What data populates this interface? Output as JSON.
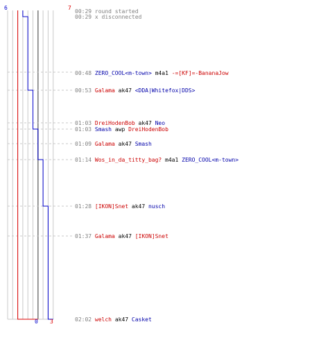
{
  "colors": {
    "team_blue": "#0000cc",
    "team_red": "#dd0000",
    "grid": "#c8c8c8",
    "timeline": "#7f7f7f"
  },
  "scores": {
    "blue_start": "6",
    "red_start": "7",
    "blue_end": "0",
    "red_end": "3"
  },
  "chart_data": {
    "type": "line",
    "series": [
      {
        "color": "blue",
        "values": [
          6,
          5,
          5,
          4,
          4,
          3,
          3,
          2,
          1,
          1,
          0
        ]
      },
      {
        "color": "red",
        "values": [
          7,
          7,
          7,
          7,
          7,
          7,
          7,
          7,
          7,
          7,
          3
        ]
      }
    ],
    "ylim": [
      0,
      7
    ]
  },
  "events": [
    {
      "time": "00:29",
      "parts": [
        {
          "t": "round started",
          "c": "gray"
        }
      ]
    },
    {
      "time": "00:29",
      "parts": [
        {
          "t": "x disconnected",
          "c": "gray"
        }
      ]
    },
    {
      "time": "00:48",
      "parts": [
        {
          "t": "ZERO_COOL<m-town>",
          "c": "blue"
        },
        {
          "t": " m4a1 ",
          "c": "blk"
        },
        {
          "t": "-=[KF]=-BananaJow",
          "c": "red"
        }
      ]
    },
    {
      "time": "00:53",
      "parts": [
        {
          "t": "Galama",
          "c": "red"
        },
        {
          "t": " ak47 ",
          "c": "blk"
        },
        {
          "t": "<DDA|Whitefox|DDS>",
          "c": "blue"
        }
      ]
    },
    {
      "time": "01:03",
      "parts": [
        {
          "t": "DreiHodenBob",
          "c": "red"
        },
        {
          "t": " ak47 ",
          "c": "blk"
        },
        {
          "t": "Neo",
          "c": "blue"
        }
      ]
    },
    {
      "time": "01:03",
      "parts": [
        {
          "t": "Smash",
          "c": "blue"
        },
        {
          "t": " awp ",
          "c": "blk"
        },
        {
          "t": "DreiHodenBob",
          "c": "red"
        }
      ]
    },
    {
      "time": "01:09",
      "parts": [
        {
          "t": "Galama",
          "c": "red"
        },
        {
          "t": " ak47 ",
          "c": "blk"
        },
        {
          "t": "Smash",
          "c": "blue"
        }
      ]
    },
    {
      "time": "01:14",
      "parts": [
        {
          "t": "Wos_in_da_titty_bag?",
          "c": "red"
        },
        {
          "t": " m4a1 ",
          "c": "blk"
        },
        {
          "t": "ZERO_COOL<m-town>",
          "c": "blue"
        }
      ]
    },
    {
      "time": "01:28",
      "parts": [
        {
          "t": "[IKON]Snet",
          "c": "red"
        },
        {
          "t": " ak47 ",
          "c": "blk"
        },
        {
          "t": "nusch",
          "c": "blue"
        }
      ]
    },
    {
      "time": "01:37",
      "parts": [
        {
          "t": "Galama",
          "c": "red"
        },
        {
          "t": " ak47 ",
          "c": "blk"
        },
        {
          "t": "[IKON]Snet",
          "c": "red"
        }
      ]
    },
    {
      "time": "02:02",
      "parts": [
        {
          "t": "welch",
          "c": "red"
        },
        {
          "t": " ak47 ",
          "c": "blk"
        },
        {
          "t": "Casket",
          "c": "blue"
        }
      ]
    }
  ]
}
